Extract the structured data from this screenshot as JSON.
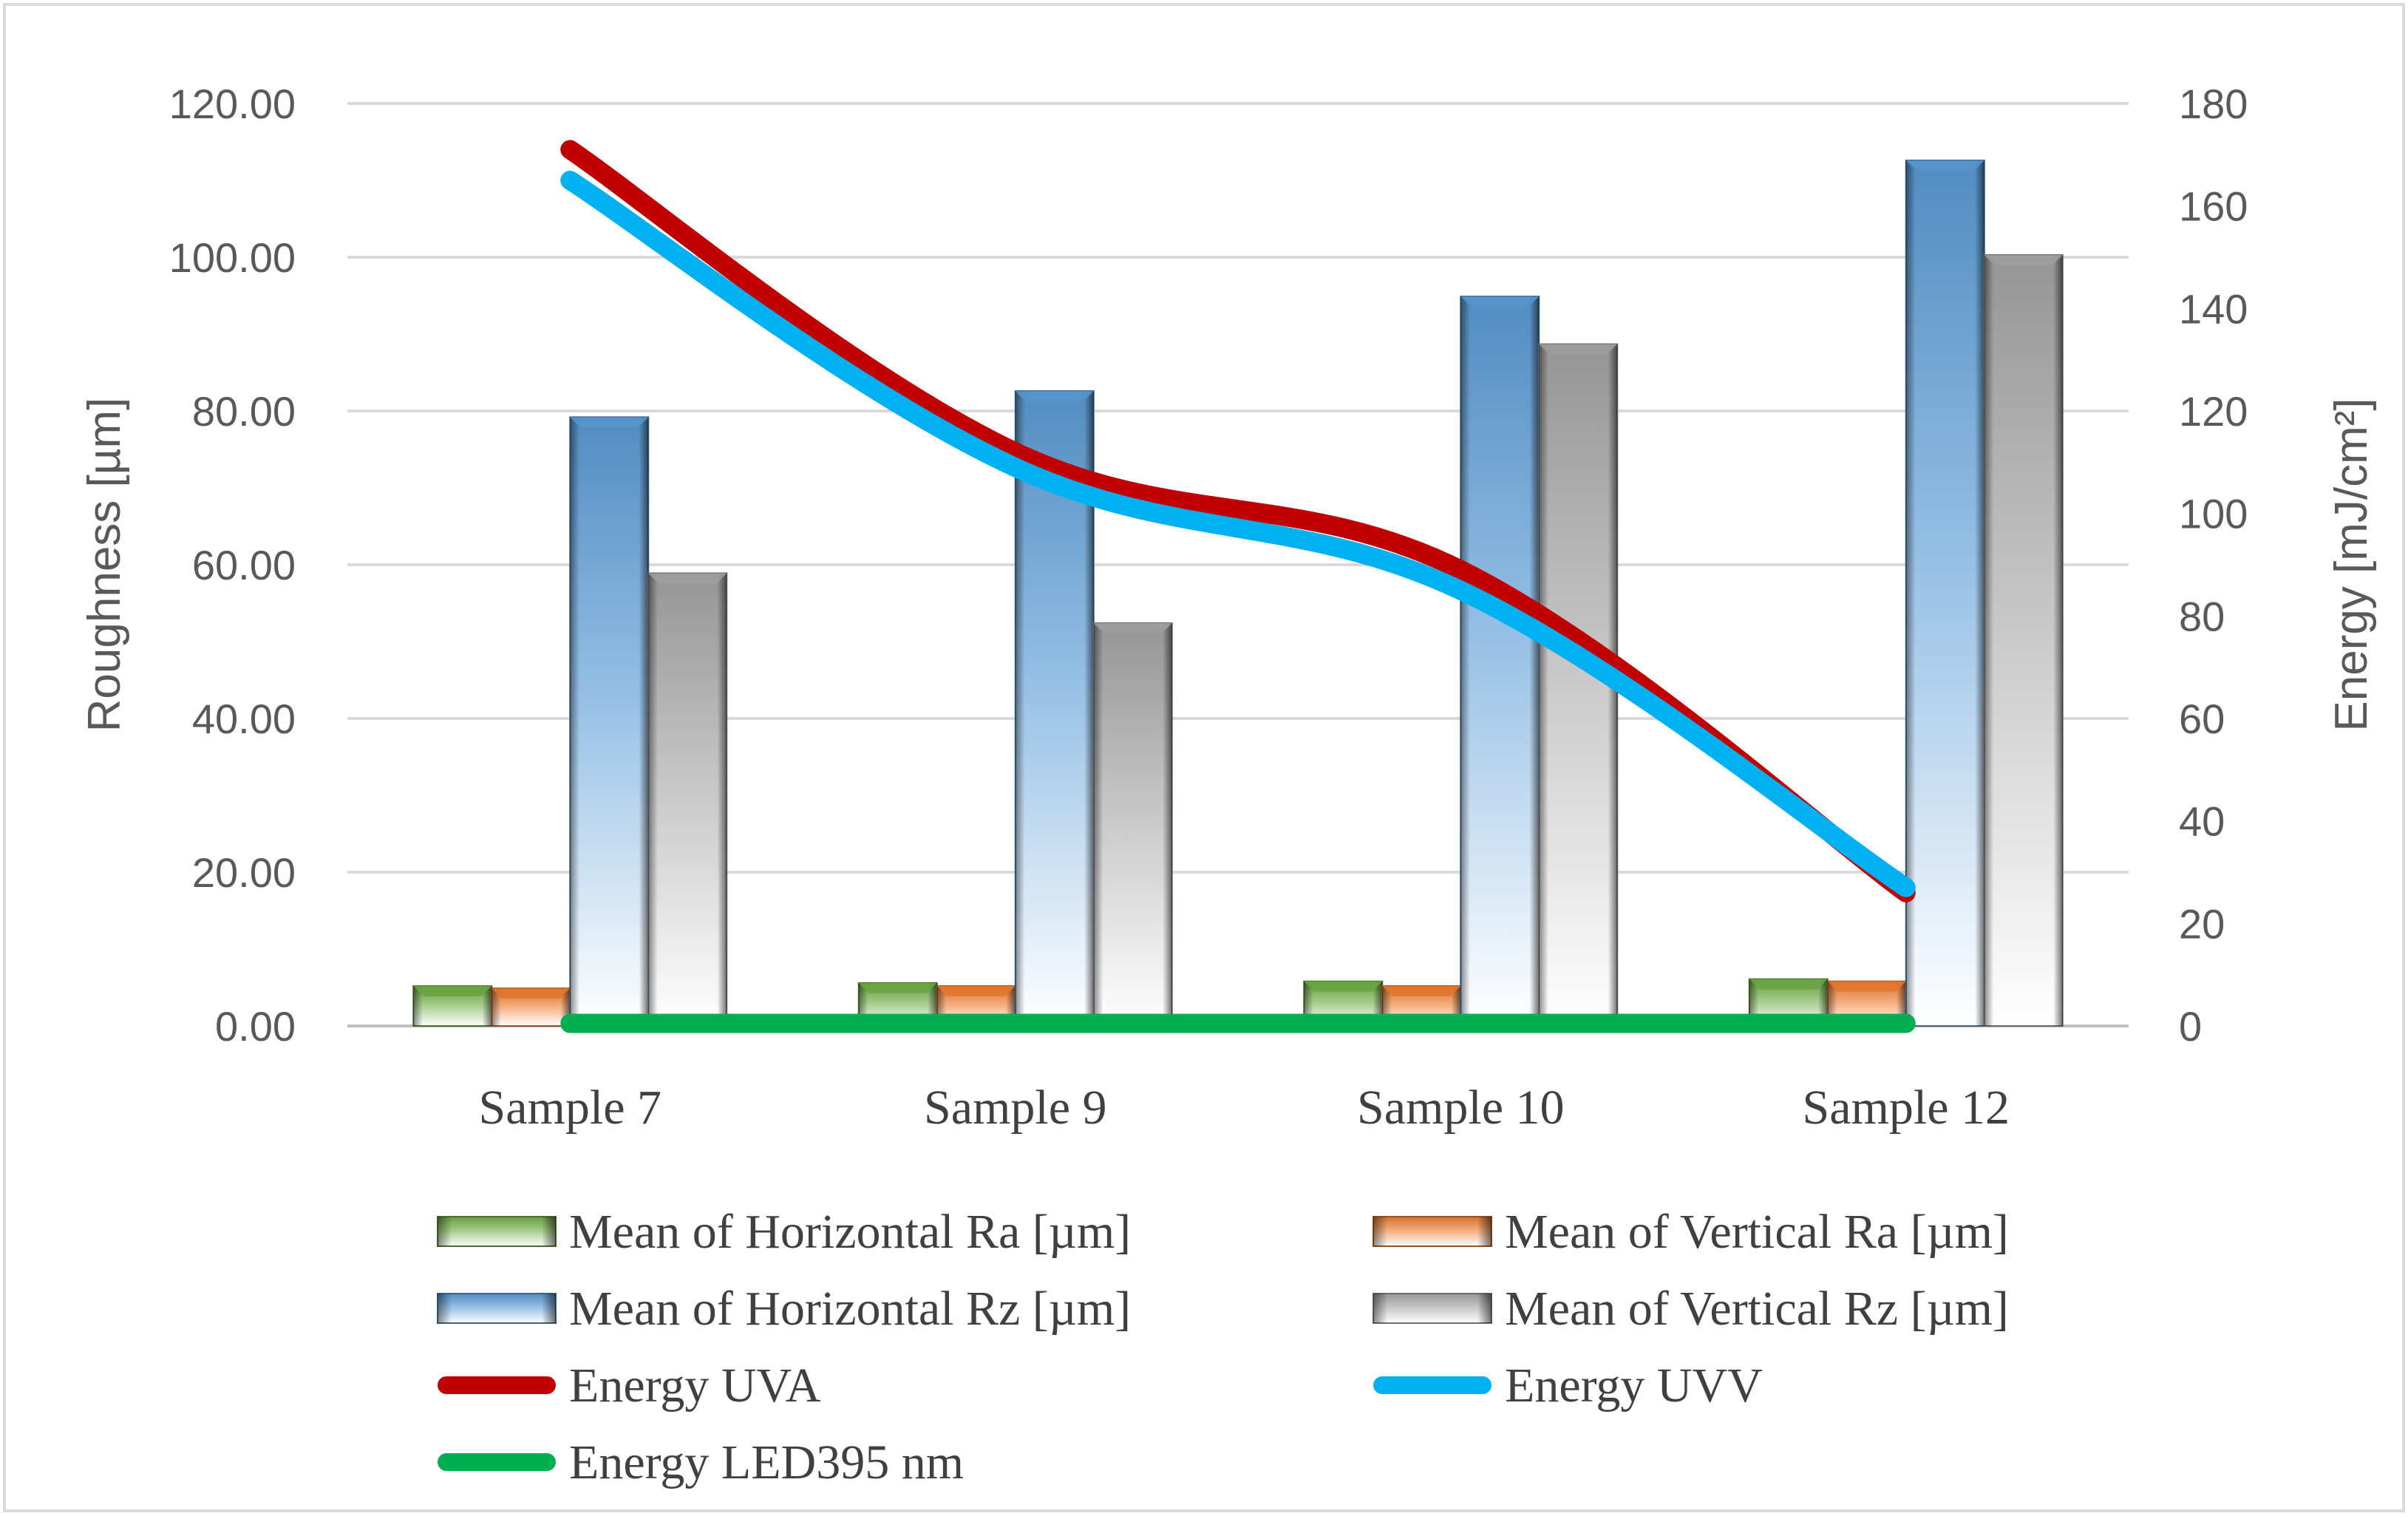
{
  "chart_data": {
    "type": "bar",
    "categories": [
      "Sample 7",
      "Sample 9",
      "Sample 10",
      "Sample 12"
    ],
    "series": [
      {
        "name": "Mean of Horizontal Ra [µm]",
        "kind": "bar",
        "axis": "left",
        "color": "#70ad47",
        "values": [
          5.2,
          5.6,
          5.8,
          6.1
        ]
      },
      {
        "name": "Mean of Vertical Ra [µm]",
        "kind": "bar",
        "axis": "left",
        "color": "#ed7d31",
        "values": [
          4.9,
          5.2,
          5.2,
          5.8
        ]
      },
      {
        "name": "Mean of Horizontal Rz [µm]",
        "kind": "bar",
        "axis": "left",
        "color": "#5b9bd5",
        "values": [
          79.2,
          82.6,
          94.9,
          112.6
        ]
      },
      {
        "name": "Mean of Vertical Rz [µm]",
        "kind": "bar",
        "axis": "left",
        "color": "#a5a5a5",
        "values": [
          58.9,
          52.4,
          88.7,
          100.3
        ]
      },
      {
        "name": "Energy UVA",
        "kind": "line",
        "axis": "right",
        "color": "#c00000",
        "values": [
          171,
          112,
          89,
          26
        ]
      },
      {
        "name": "Energy UVV",
        "kind": "line",
        "axis": "right",
        "color": "#00b0f0",
        "values": [
          165,
          109,
          85,
          27
        ]
      },
      {
        "name": "Energy LED395  nm",
        "kind": "line",
        "axis": "right",
        "color": "#00b050",
        "values": [
          0.5,
          0.5,
          0.5,
          0.5
        ]
      }
    ],
    "ylabel": "Roughness [µm]",
    "y2label": "Energy  [mJ/cm²]",
    "ylim": [
      0,
      120
    ],
    "y2lim": [
      0,
      180
    ],
    "yticks": [
      "0.00",
      "20.00",
      "40.00",
      "60.00",
      "80.00",
      "100.00",
      "120.00"
    ],
    "y2ticks": [
      "0",
      "20",
      "40",
      "60",
      "80",
      "100",
      "120",
      "140",
      "160",
      "180"
    ],
    "grid": true,
    "legend_position": "bottom"
  }
}
